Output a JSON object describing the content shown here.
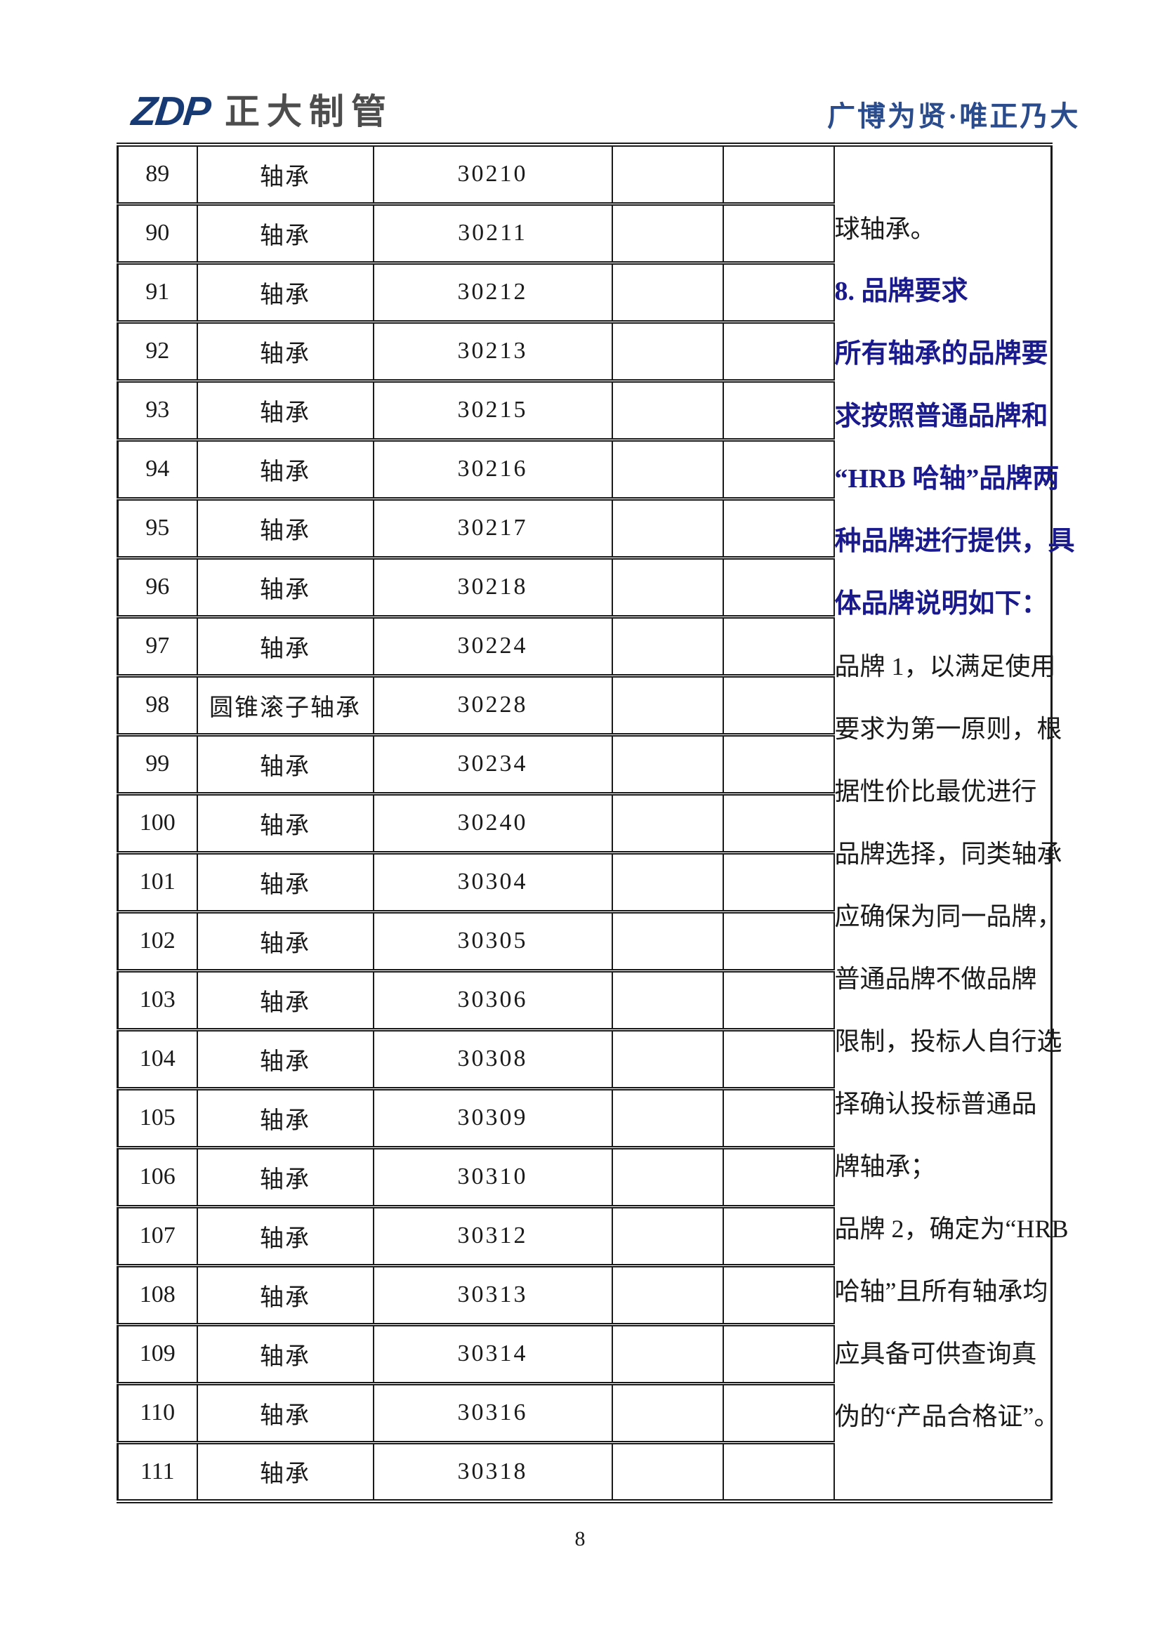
{
  "header": {
    "logo_mark": "ZDP",
    "logo_company": "正大制管",
    "slogan": "广博为贤·唯正乃大"
  },
  "table": {
    "rows": [
      {
        "no": "89",
        "name": "轴承",
        "model": "30210"
      },
      {
        "no": "90",
        "name": "轴承",
        "model": "30211"
      },
      {
        "no": "91",
        "name": "轴承",
        "model": "30212"
      },
      {
        "no": "92",
        "name": "轴承",
        "model": "30213"
      },
      {
        "no": "93",
        "name": "轴承",
        "model": "30215"
      },
      {
        "no": "94",
        "name": "轴承",
        "model": "30216"
      },
      {
        "no": "95",
        "name": "轴承",
        "model": "30217"
      },
      {
        "no": "96",
        "name": "轴承",
        "model": "30218"
      },
      {
        "no": "97",
        "name": "轴承",
        "model": "30224"
      },
      {
        "no": "98",
        "name": "圆锥滚子轴承",
        "model": "30228"
      },
      {
        "no": "99",
        "name": "轴承",
        "model": "30234"
      },
      {
        "no": "100",
        "name": "轴承",
        "model": "30240"
      },
      {
        "no": "101",
        "name": "轴承",
        "model": "30304"
      },
      {
        "no": "102",
        "name": "轴承",
        "model": "30305"
      },
      {
        "no": "103",
        "name": "轴承",
        "model": "30306"
      },
      {
        "no": "104",
        "name": "轴承",
        "model": "30308"
      },
      {
        "no": "105",
        "name": "轴承",
        "model": "30309"
      },
      {
        "no": "106",
        "name": "轴承",
        "model": "30310"
      },
      {
        "no": "107",
        "name": "轴承",
        "model": "30312"
      },
      {
        "no": "108",
        "name": "轴承",
        "model": "30313"
      },
      {
        "no": "109",
        "name": "轴承",
        "model": "30314"
      },
      {
        "no": "110",
        "name": "轴承",
        "model": "30316"
      },
      {
        "no": "111",
        "name": "轴承",
        "model": "30318"
      }
    ],
    "notes": {
      "lines": [
        {
          "text": "球轴承。",
          "style": "normal"
        },
        {
          "text": "8. 品牌要求",
          "style": "em"
        },
        {
          "text": "所有轴承的品牌要",
          "style": "em"
        },
        {
          "text": "求按照普通品牌和",
          "style": "em"
        },
        {
          "text": "“HRB 哈轴”品牌两",
          "style": "em"
        },
        {
          "text": "种品牌进行提供，具",
          "style": "em"
        },
        {
          "text": "体品牌说明如下：",
          "style": "em"
        },
        {
          "text": "品牌 1，以满足使用",
          "style": "normal"
        },
        {
          "text": "要求为第一原则，根",
          "style": "normal"
        },
        {
          "text": "据性价比最优进行",
          "style": "normal"
        },
        {
          "text": "品牌选择，同类轴承",
          "style": "normal"
        },
        {
          "text": "应确保为同一品牌，",
          "style": "normal"
        },
        {
          "text": "普通品牌不做品牌",
          "style": "normal"
        },
        {
          "text": "限制，投标人自行选",
          "style": "normal"
        },
        {
          "text": "择确认投标普通品",
          "style": "normal"
        },
        {
          "text": "牌轴承；",
          "style": "normal"
        },
        {
          "text": "品牌 2，确定为“HRB",
          "style": "normal"
        },
        {
          "text": "哈轴”且所有轴承均",
          "style": "normal"
        },
        {
          "text": "应具备可供查询真",
          "style": "normal"
        },
        {
          "text": "伪的“产品合格证”。",
          "style": "normal"
        }
      ]
    }
  },
  "footer": {
    "page_number": "8"
  },
  "colors": {
    "note_accent_blue": "#1a1a8c",
    "logo_blue": "#173a75",
    "logo_gray": "#4d4d4d",
    "slogan_blue": "#2b4c8c",
    "border": "#1a1a1a"
  }
}
